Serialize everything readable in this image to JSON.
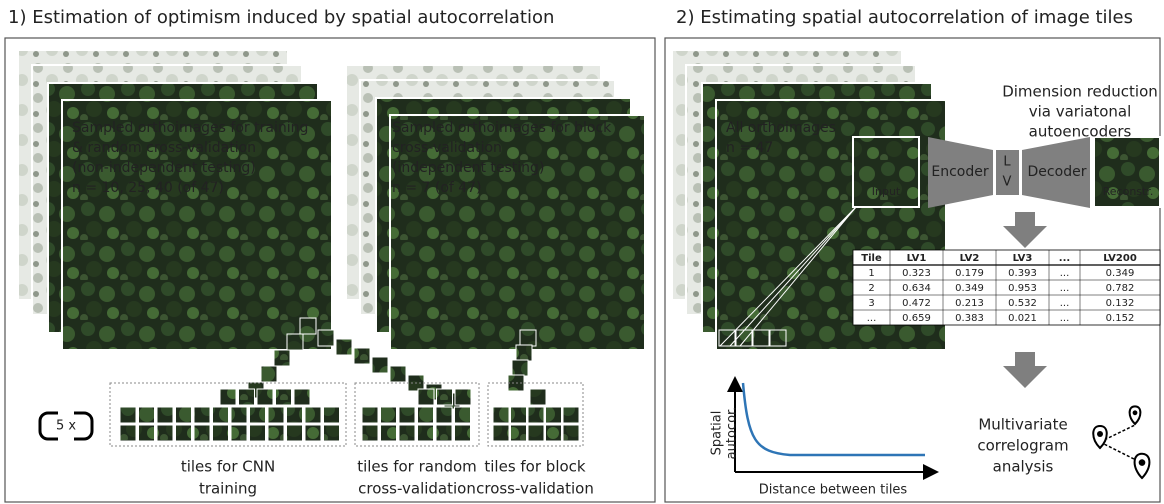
{
  "panel1": {
    "title": "1) Estimation of optimism induced by spatial autocorrelation",
    "stack_training": [
      "Sampled orthoimages for training",
      "& random cross-validation",
      "(non-independent testing)",
      "n = 10, 25, 40 (of 47)"
    ],
    "stack_block": [
      "Sampled orthoimages for block",
      "cross-validation",
      "(independent testing)",
      "n = 7 (of 47)"
    ],
    "repeat_label": "5 x",
    "tile_groups": [
      [
        "tiles for CNN",
        "training"
      ],
      [
        "tiles for random",
        "cross-validation"
      ],
      [
        "tiles for block",
        "cross-validation"
      ]
    ]
  },
  "panel2": {
    "title": "2) Estimating spatial autocorrelation of image tiles",
    "stack": [
      "All orthoimages",
      "n = 47"
    ],
    "vae_caption": [
      "Dimension reduction",
      "via variatonal",
      "autoencoders"
    ],
    "vae": {
      "input": "Input",
      "encoder": "Encoder",
      "latent": [
        "L",
        "V"
      ],
      "decoder": "Decoder",
      "output": "Reconstr."
    },
    "table": {
      "header": [
        "Tile",
        "LV1",
        "LV2",
        "LV3",
        "...",
        "LV200"
      ],
      "rows": [
        [
          "1",
          "0.323",
          "0.179",
          "0.393",
          "...",
          "0.349"
        ],
        [
          "2",
          "0.634",
          "0.349",
          "0.953",
          "...",
          "0.782"
        ],
        [
          "3",
          "0.472",
          "0.213",
          "0.532",
          "...",
          "0.132"
        ],
        [
          "...",
          "0.659",
          "0.383",
          "0.021",
          "...",
          "0.152"
        ]
      ]
    },
    "correlogram": {
      "y_label": [
        "Spatial",
        "autocor."
      ],
      "x_label": "Distance between tiles"
    },
    "analysis": [
      "Multivariate",
      "correlogram",
      "analysis"
    ]
  }
}
